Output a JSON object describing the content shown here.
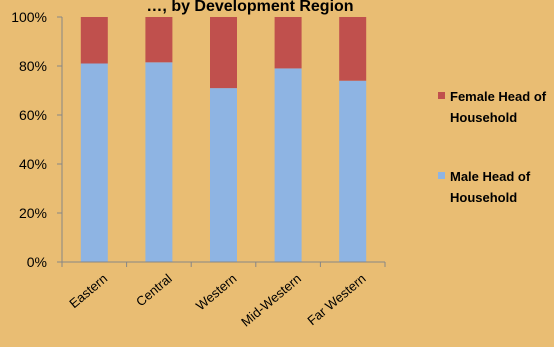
{
  "chart_data": {
    "type": "bar",
    "stacked": true,
    "title": "…, by Development Region",
    "categories": [
      "Eastern",
      "Central",
      "Western",
      "Mid-Western",
      "Far Western"
    ],
    "series": [
      {
        "name": "Male Head of Household",
        "values": [
          81,
          81.5,
          71,
          79,
          74
        ],
        "color": "#8EB4E3"
      },
      {
        "name": "Female Head of Household",
        "values": [
          19,
          18.5,
          29,
          21,
          26
        ],
        "color": "#C0504D"
      }
    ],
    "ylim": [
      0,
      100
    ],
    "yticks": [
      "0%",
      "20%",
      "40%",
      "60%",
      "80%",
      "100%"
    ],
    "grid": false,
    "legend_position": "right"
  },
  "colors": {
    "background": "#E9BD73",
    "axis": "#868686"
  }
}
